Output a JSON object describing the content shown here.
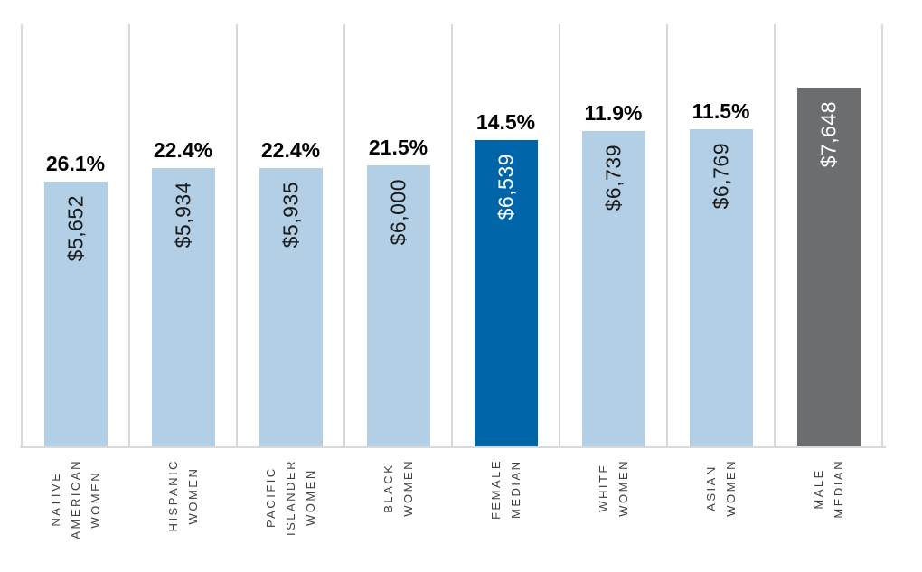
{
  "chart_data": {
    "type": "bar",
    "title": "",
    "xlabel": "",
    "ylabel": "",
    "ylim": [
      0,
      9000
    ],
    "legend": null,
    "grid": "vertical category separator gridlines, light gray, no horizontal gridlines",
    "categories": [
      "NATIVE AMERICAN WOMEN",
      "HISPANIC WOMEN",
      "PACIFIC ISLANDER WOMEN",
      "BLACK WOMEN",
      "FEMALE MEDIAN",
      "WHITE WOMEN",
      "ASIAN WOMEN",
      "MALE MEDIAN"
    ],
    "category_lines": [
      [
        "NATIVE",
        "AMERICAN",
        "WOMEN"
      ],
      [
        "HISPANIC",
        "WOMEN"
      ],
      [
        "PACIFIC",
        "ISLANDER",
        "WOMEN"
      ],
      [
        "BLACK",
        "WOMEN"
      ],
      [
        "FEMALE",
        "MEDIAN"
      ],
      [
        "WHITE",
        "WOMEN"
      ],
      [
        "ASIAN",
        "WOMEN"
      ],
      [
        "MALE",
        "MEDIAN"
      ]
    ],
    "values": [
      5652,
      5934,
      5935,
      6000,
      6539,
      6739,
      6769,
      7648
    ],
    "value_labels": [
      "$5,652",
      "$5,934",
      "$5,935",
      "$6,000",
      "$6,539",
      "$6,739",
      "$6,769",
      "$7,648"
    ],
    "gap_labels": [
      "26.1%",
      "22.4%",
      "22.4%",
      "21.5%",
      "14.5%",
      "11.9%",
      "11.5%",
      null
    ],
    "bar_colors": [
      "#b2cfe5",
      "#b2cfe5",
      "#b2cfe5",
      "#b2cfe5",
      "#0065a8",
      "#b2cfe5",
      "#b2cfe5",
      "#6c6d6f"
    ],
    "value_label_colors": [
      "#1a1a1a",
      "#1a1a1a",
      "#1a1a1a",
      "#1a1a1a",
      "#ffffff",
      "#1a1a1a",
      "#1a1a1a",
      "#ffffff"
    ],
    "gap_label_color": "#000000",
    "category_label_color": "#404040",
    "gridline_color": "#d9d9d9",
    "axis_line_color": "#d9d9d9"
  }
}
